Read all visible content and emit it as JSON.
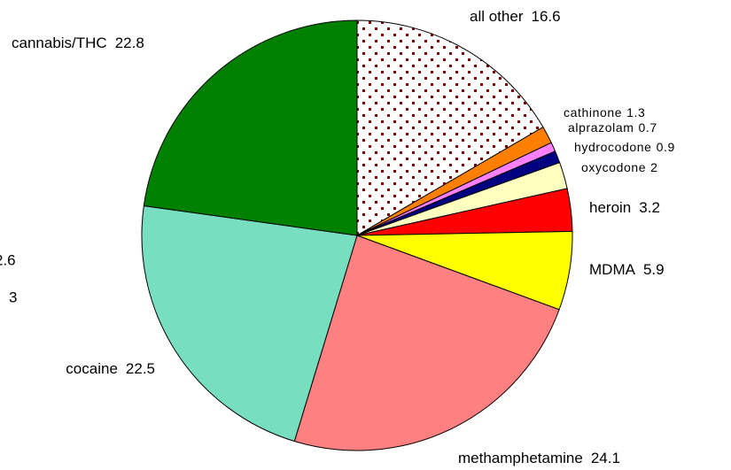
{
  "chart_data": {
    "type": "pie",
    "categories": [
      "all other",
      "cathinone",
      "alprazolam",
      "hydrocodone",
      "oxycodone",
      "heroin",
      "MDMA",
      "methamphetamine",
      "cocaine",
      "cannabis/THC"
    ],
    "values": [
      16.6,
      1.3,
      0.7,
      0.9,
      2,
      3.2,
      5.9,
      24.1,
      22.5,
      22.8
    ],
    "colors": [
      "pattern-dots",
      "#ff8000",
      "#ff80ff",
      "#000080",
      "#ffffc0",
      "#ff0000",
      "#ffff00",
      "#ff8080",
      "#77dfc0",
      "#008000"
    ],
    "annotations": [
      "2.6",
      "3"
    ]
  }
}
